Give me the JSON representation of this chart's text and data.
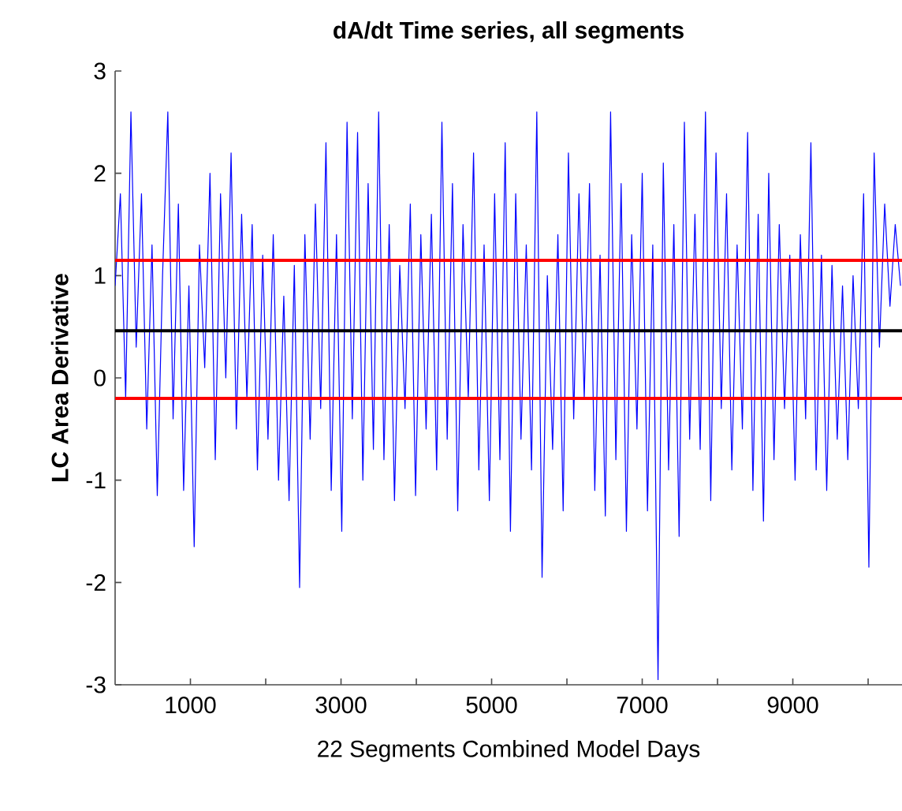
{
  "chart_data": {
    "type": "line",
    "title": "dA/dt Time series, all segments",
    "xlabel": "22 Segments Combined Model Days",
    "ylabel": "LC Area Derivative",
    "xlim": [
      0,
      10450
    ],
    "ylim": [
      -3,
      3
    ],
    "xticks": [
      1000,
      {
        "value": 2000,
        "label": null
      },
      3000,
      {
        "value": 4000,
        "label": null
      },
      5000,
      {
        "value": 6000,
        "label": null
      },
      7000,
      {
        "value": 8000,
        "label": null
      },
      9000,
      {
        "value": 10000,
        "label": null
      }
    ],
    "yticks": [
      -3,
      -2,
      -1,
      0,
      1,
      2,
      3
    ],
    "grid": false,
    "marker": "none",
    "line_style": "solid",
    "ref_lines": [
      {
        "axis": "y",
        "value": 1.15,
        "color": "#ff0000"
      },
      {
        "axis": "y",
        "value": 0.46,
        "color": "#000000"
      },
      {
        "axis": "y",
        "value": -0.2,
        "color": "#ff0000"
      }
    ],
    "series": [
      {
        "color": "#0000ff",
        "x": [
          0,
          70,
          140,
          210,
          280,
          350,
          420,
          490,
          560,
          630,
          700,
          770,
          840,
          910,
          980,
          1050,
          1120,
          1190,
          1260,
          1330,
          1400,
          1470,
          1540,
          1610,
          1680,
          1750,
          1820,
          1890,
          1960,
          2030,
          2100,
          2170,
          2240,
          2310,
          2380,
          2450,
          2520,
          2590,
          2660,
          2730,
          2800,
          2870,
          2940,
          3010,
          3080,
          3150,
          3220,
          3290,
          3360,
          3430,
          3500,
          3570,
          3640,
          3710,
          3780,
          3850,
          3920,
          3990,
          4060,
          4130,
          4200,
          4270,
          4340,
          4410,
          4480,
          4550,
          4620,
          4690,
          4760,
          4830,
          4900,
          4970,
          5040,
          5110,
          5180,
          5250,
          5320,
          5390,
          5460,
          5530,
          5600,
          5670,
          5740,
          5810,
          5880,
          5950,
          6020,
          6090,
          6160,
          6230,
          6300,
          6370,
          6440,
          6510,
          6580,
          6650,
          6720,
          6790,
          6860,
          6930,
          7000,
          7070,
          7140,
          7210,
          7280,
          7350,
          7420,
          7490,
          7560,
          7630,
          7700,
          7770,
          7840,
          7910,
          7980,
          8050,
          8120,
          8190,
          8260,
          8330,
          8400,
          8470,
          8540,
          8610,
          8680,
          8750,
          8820,
          8890,
          8960,
          9030,
          9100,
          9170,
          9240,
          9310,
          9380,
          9450,
          9520,
          9590,
          9660,
          9730,
          9800,
          9870,
          9940,
          10010,
          10080,
          10150,
          10220,
          10290,
          10360,
          10430
        ],
        "values": [
          0.9,
          1.8,
          -0.2,
          2.6,
          0.3,
          1.8,
          -0.5,
          1.3,
          -1.15,
          1.0,
          2.6,
          -0.4,
          1.7,
          -1.1,
          0.9,
          -1.65,
          1.3,
          0.1,
          2.0,
          -0.8,
          1.8,
          0.0,
          2.2,
          -0.5,
          1.6,
          -0.2,
          1.5,
          -0.9,
          1.2,
          -0.6,
          1.4,
          -1.0,
          0.8,
          -1.2,
          1.1,
          -2.05,
          1.4,
          -0.6,
          1.7,
          -0.3,
          2.3,
          -1.1,
          1.4,
          -1.5,
          2.5,
          -0.4,
          2.4,
          -1.0,
          1.9,
          -0.7,
          2.6,
          -0.8,
          1.5,
          -1.2,
          1.1,
          -0.3,
          1.7,
          -1.15,
          1.4,
          -0.5,
          1.6,
          -0.9,
          2.5,
          -0.6,
          1.9,
          -1.3,
          1.5,
          -0.2,
          2.2,
          -0.9,
          1.3,
          -1.2,
          1.8,
          -0.8,
          2.3,
          -1.5,
          1.8,
          -0.6,
          1.3,
          -0.9,
          2.6,
          -1.95,
          1.0,
          -0.7,
          1.4,
          -1.3,
          2.2,
          -0.4,
          1.8,
          -0.2,
          1.9,
          -1.1,
          1.2,
          -1.35,
          2.6,
          -0.8,
          1.9,
          -1.5,
          1.4,
          -0.5,
          2.0,
          -1.3,
          1.3,
          -2.95,
          2.1,
          -0.9,
          1.5,
          -1.55,
          2.5,
          -0.6,
          1.6,
          -0.7,
          2.6,
          -1.2,
          2.2,
          -0.3,
          1.8,
          -0.9,
          1.3,
          -0.5,
          2.4,
          -1.1,
          1.6,
          -1.4,
          2.0,
          -0.8,
          1.5,
          -0.3,
          1.2,
          -1.0,
          1.4,
          -0.4,
          2.3,
          -0.9,
          1.2,
          -1.1,
          1.1,
          -0.6,
          0.9,
          -0.8,
          1.0,
          -0.3,
          1.8,
          -1.85,
          2.2,
          0.3,
          1.7,
          0.7,
          1.5,
          0.9
        ]
      }
    ]
  }
}
